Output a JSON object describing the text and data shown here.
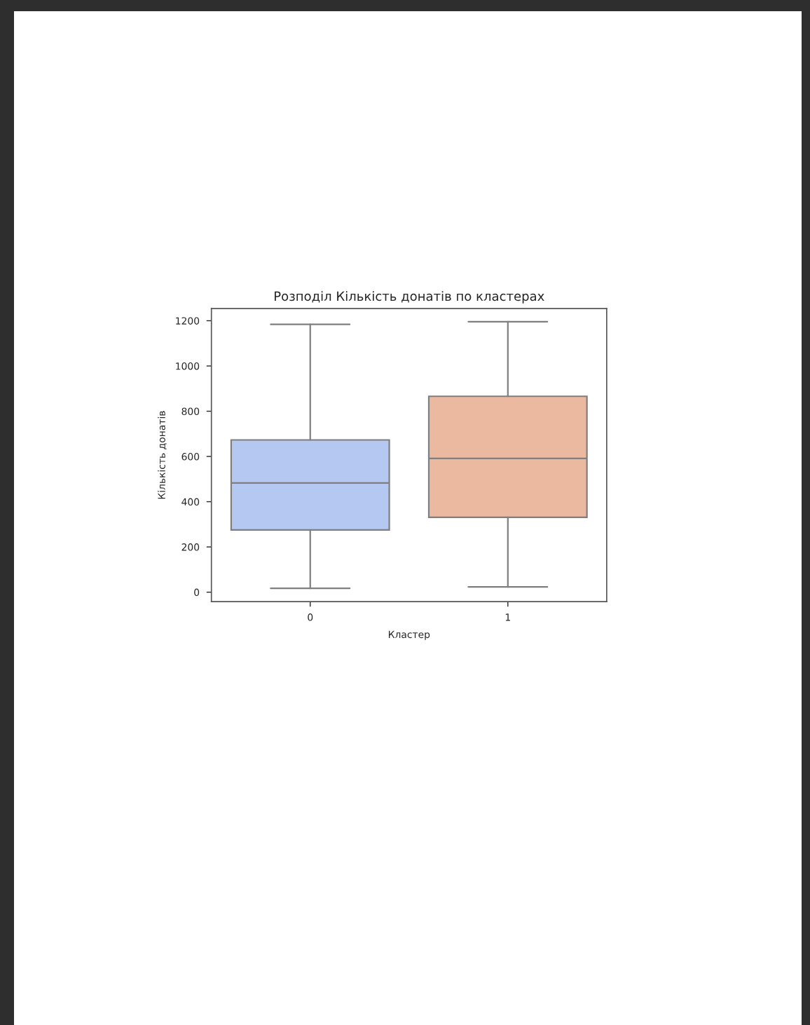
{
  "chart_data": {
    "type": "box",
    "title": "Розподіл Кількість донатів по кластерах",
    "xlabel": "Кластер",
    "ylabel": "Кількість донатів",
    "categories": [
      "0",
      "1"
    ],
    "colors": [
      "#b4c8f1",
      "#ebb9a0"
    ],
    "boxes": [
      {
        "low": 17,
        "q1": 275,
        "median": 483,
        "q3": 673,
        "high": 1184
      },
      {
        "low": 23,
        "q1": 331,
        "median": 591,
        "q3": 866,
        "high": 1196
      }
    ],
    "ylim": [
      -42,
      1254
    ],
    "yticks": [
      0,
      200,
      400,
      600,
      800,
      1000,
      1200
    ],
    "grid": false
  }
}
